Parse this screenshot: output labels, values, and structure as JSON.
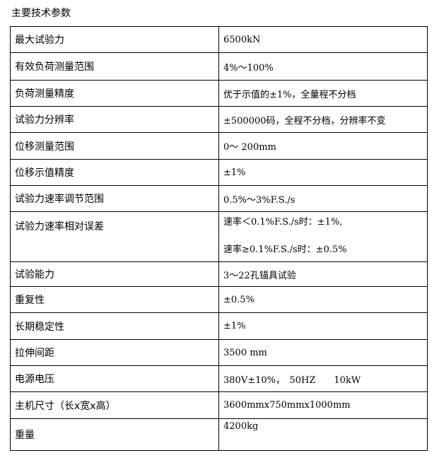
{
  "title": "主要技术参数",
  "rows": [
    {
      "key": "最大试验力",
      "value": "6500kN"
    },
    {
      "key": "有效负荷测量范围",
      "value": "4%～100%"
    },
    {
      "key": "负荷测量精度",
      "value": "优于示值的±1%，全量程不分档"
    },
    {
      "key": "试验力分辨率",
      "value": "±500000码，全程不分档，分辨率不变"
    },
    {
      "key": "位移测量范围",
      "value": "0～ 200mm"
    },
    {
      "key": "位移示值精度",
      "value": "±1%"
    },
    {
      "key": "试验力速率调节范围",
      "value": "0.5%～3%F.S./s"
    },
    {
      "key": "试验力速率相对误差",
      "value": "速率＜0.1%F.S./s时：±1%,",
      "value2": "速率≥0.1%F.S./s时：±0.5%"
    },
    {
      "key": "试验能力",
      "value": "3～22孔锚具试验"
    },
    {
      "key": "重复性",
      "value": "±0.5%"
    },
    {
      "key": "长期稳定性",
      "value": "±1%"
    },
    {
      "key": "拉伸间距",
      "value": "3500 mm"
    },
    {
      "key": "电源电压",
      "value": "380V±10%，　50HZ　　10kW"
    },
    {
      "key": "主机尺寸（长x宽x高）",
      "value": "3600mmx750mmx1000mm"
    },
    {
      "key": "重量",
      "value": "4200kg"
    }
  ]
}
